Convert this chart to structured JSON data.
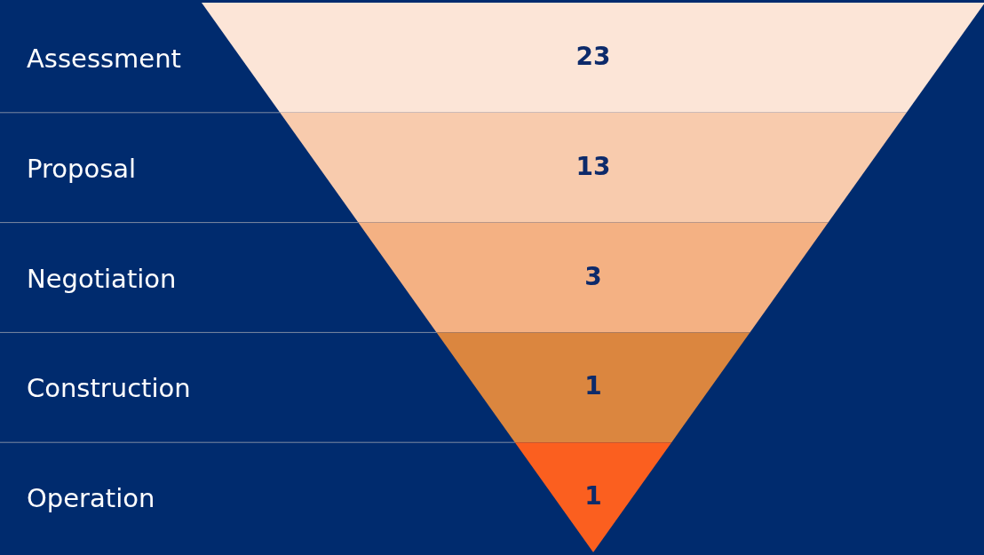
{
  "chart_data": {
    "type": "other",
    "categories": [
      "Assessment",
      "Proposal",
      "Negotiation",
      "Construction",
      "Operation"
    ],
    "values": [
      23,
      13,
      3,
      1,
      1
    ],
    "colors": [
      "#fce5d7",
      "#f8cbad",
      "#f4b183",
      "#db863f",
      "#fb5f1f"
    ],
    "data_labels": true
  }
}
